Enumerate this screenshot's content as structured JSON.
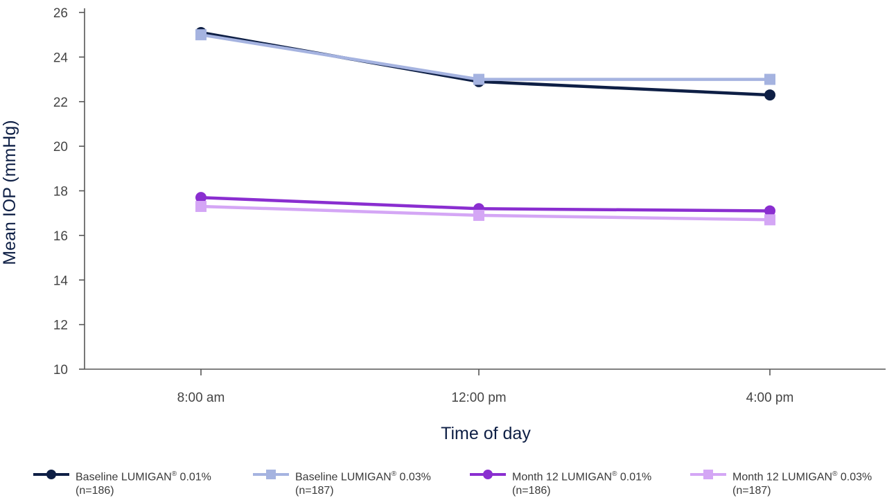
{
  "chart_data": {
    "type": "line",
    "categories": [
      "8:00 am",
      "12:00 pm",
      "4:00 pm"
    ],
    "xlabel": "Time of day",
    "ylabel": "Mean IOP (mmHg)",
    "ylim": [
      10,
      26
    ],
    "yticks": [
      10,
      12,
      14,
      16,
      18,
      20,
      22,
      24,
      26
    ],
    "grid": false,
    "legend_position": "bottom",
    "series": [
      {
        "name": "Baseline LUMIGAN® 0.01%",
        "name_base": "Baseline LUMIGAN",
        "name_mark": "®",
        "name_suffix": " 0.01%",
        "n": "(n=186)",
        "values": [
          25.1,
          22.9,
          22.3
        ],
        "color": "#0e1f45",
        "marker": "circle"
      },
      {
        "name": "Baseline LUMIGAN® 0.03%",
        "name_base": "Baseline LUMIGAN",
        "name_mark": "®",
        "name_suffix": " 0.03%",
        "n": "(n=187)",
        "values": [
          25.0,
          23.0,
          23.0
        ],
        "color": "#a5b3e0",
        "marker": "square"
      },
      {
        "name": "Month 12 LUMIGAN® 0.01%",
        "name_base": "Month 12 LUMIGAN",
        "name_mark": "®",
        "name_suffix": " 0.01%",
        "n": "(n=186)",
        "values": [
          17.7,
          17.2,
          17.1
        ],
        "color": "#8a2ed0",
        "marker": "circle"
      },
      {
        "name": "Month 12 LUMIGAN® 0.03%",
        "name_base": "Month 12 LUMIGAN",
        "name_mark": "®",
        "name_suffix": " 0.03%",
        "n": "(n=187)",
        "values": [
          17.3,
          16.9,
          16.7
        ],
        "color": "#d4a6f5",
        "marker": "square"
      }
    ]
  }
}
